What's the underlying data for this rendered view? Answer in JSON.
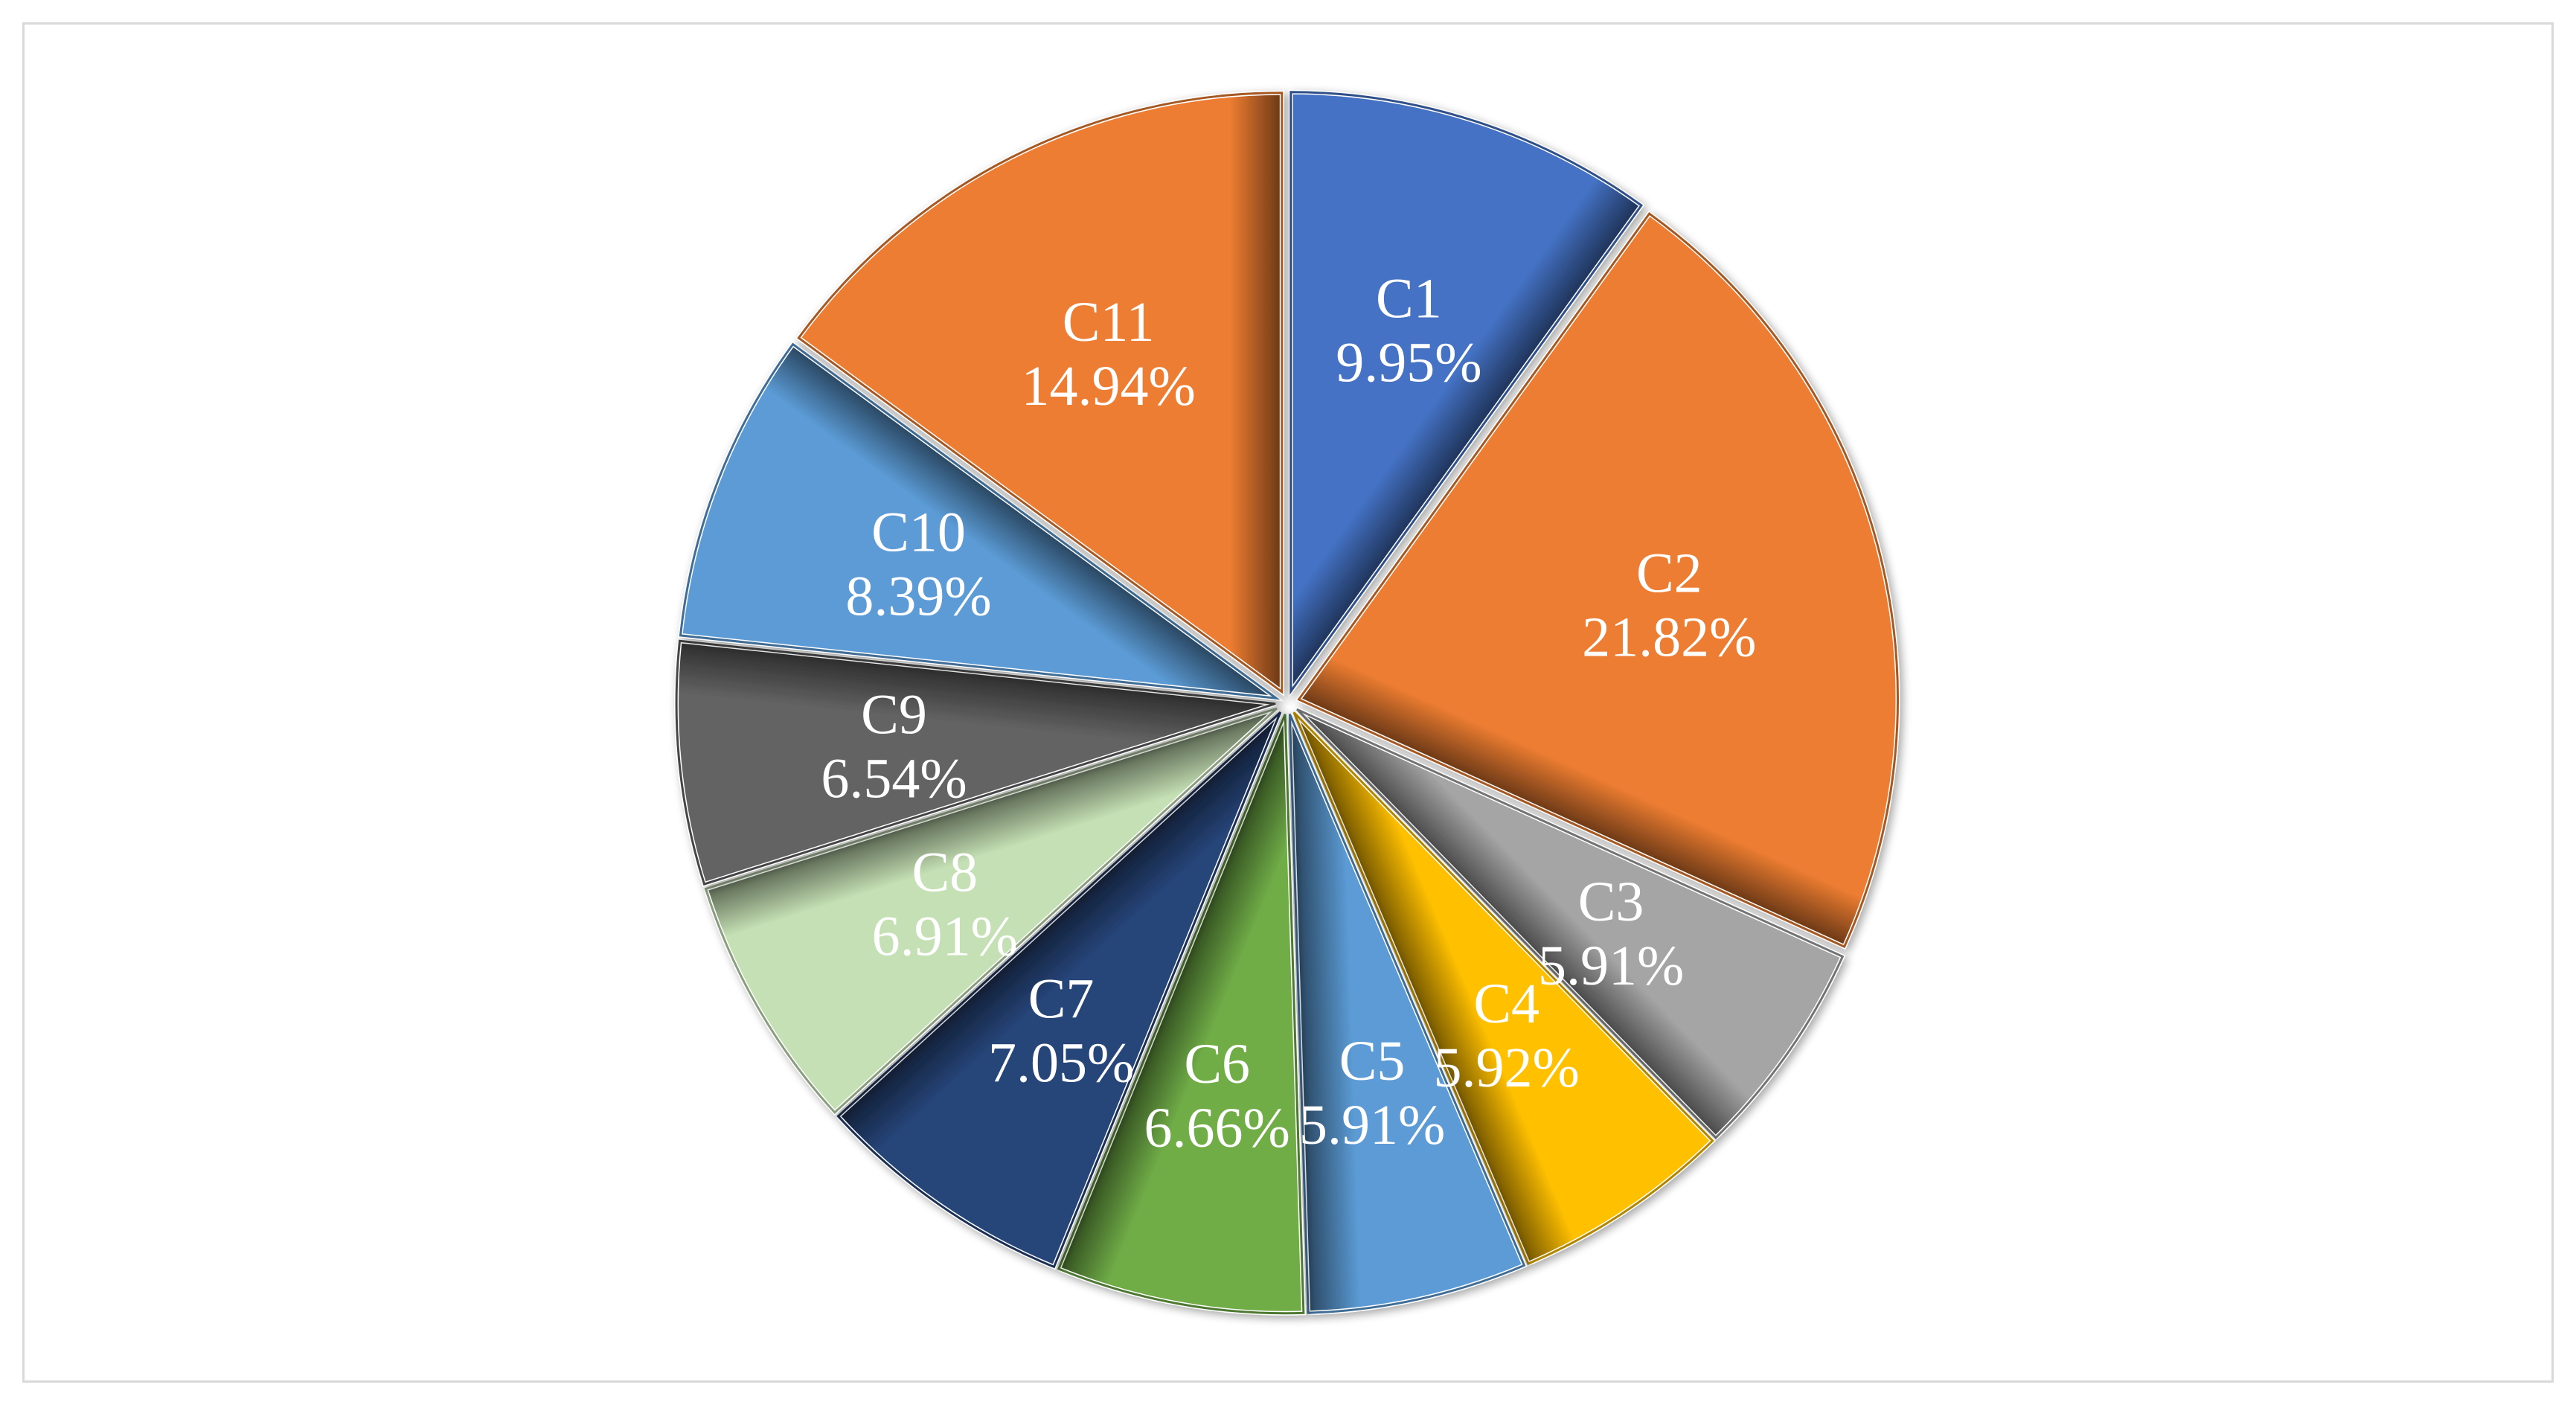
{
  "chart_data": {
    "type": "pie",
    "start_angle_deg": 0,
    "direction": "clockwise",
    "slices": [
      {
        "label": "C1",
        "value": 9.95,
        "value_label": "9.95%",
        "color": "#4472C4"
      },
      {
        "label": "C2",
        "value": 21.82,
        "value_label": "21.82%",
        "color": "#ED7D31"
      },
      {
        "label": "C3",
        "value": 5.91,
        "value_label": "5.91%",
        "color": "#A5A5A5"
      },
      {
        "label": "C4",
        "value": 5.92,
        "value_label": "5.92%",
        "color": "#FFC000"
      },
      {
        "label": "C5",
        "value": 5.91,
        "value_label": "5.91%",
        "color": "#5B9BD5"
      },
      {
        "label": "C6",
        "value": 6.66,
        "value_label": "6.66%",
        "color": "#70AD47"
      },
      {
        "label": "C7",
        "value": 7.05,
        "value_label": "7.05%",
        "color": "#264478"
      },
      {
        "label": "C8",
        "value": 6.91,
        "value_label": "6.91%",
        "color": "#C5E0B4"
      },
      {
        "label": "C9",
        "value": 6.54,
        "value_label": "6.54%",
        "color": "#636363"
      },
      {
        "label": "C10",
        "value": 8.39,
        "value_label": "8.39%",
        "color": "#5B9BD5"
      },
      {
        "label": "C11",
        "value": 14.94,
        "value_label": "14.94%",
        "color": "#ED7D31"
      }
    ]
  }
}
